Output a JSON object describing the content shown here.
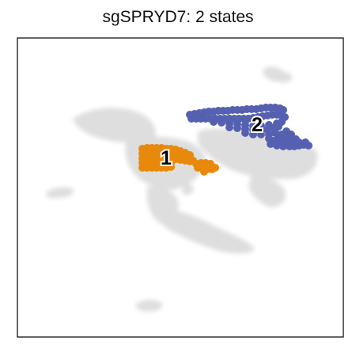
{
  "chart_data": {
    "type": "scatter",
    "title": "sgSPRYD7: 2 states",
    "xlabel": "",
    "ylabel": "",
    "ticks": false,
    "grid": false,
    "colors": {
      "background_cells": "#dedede",
      "state_1": "#e8890c",
      "state_2": "#5560b0",
      "frame": "#000000"
    },
    "series": [
      {
        "name": "1",
        "color": "#e8890c",
        "points": [
          [
            180,
            188
          ],
          [
            186,
            187
          ],
          [
            192,
            187
          ],
          [
            198,
            187
          ],
          [
            204,
            187
          ],
          [
            210,
            188
          ],
          [
            216,
            188
          ],
          [
            222,
            189
          ],
          [
            228,
            191
          ],
          [
            234,
            193
          ],
          [
            240,
            196
          ],
          [
            180,
            194
          ],
          [
            186,
            193
          ],
          [
            192,
            193
          ],
          [
            198,
            193
          ],
          [
            204,
            193
          ],
          [
            210,
            194
          ],
          [
            216,
            194
          ],
          [
            222,
            195
          ],
          [
            228,
            196
          ],
          [
            234,
            198
          ],
          [
            240,
            200
          ],
          [
            244,
            203
          ],
          [
            180,
            200
          ],
          [
            186,
            199
          ],
          [
            192,
            199
          ],
          [
            198,
            199
          ],
          [
            204,
            200
          ],
          [
            210,
            200
          ],
          [
            216,
            200
          ],
          [
            222,
            201
          ],
          [
            228,
            202
          ],
          [
            234,
            203
          ],
          [
            240,
            204
          ],
          [
            180,
            206
          ],
          [
            186,
            206
          ],
          [
            192,
            206
          ],
          [
            198,
            206
          ],
          [
            204,
            206
          ],
          [
            210,
            206
          ],
          [
            216,
            206
          ],
          [
            180,
            212
          ],
          [
            186,
            212
          ],
          [
            192,
            212
          ],
          [
            198,
            212
          ],
          [
            204,
            212
          ],
          [
            210,
            212
          ],
          [
            216,
            211
          ],
          [
            248,
            207
          ],
          [
            254,
            206
          ],
          [
            260,
            206
          ],
          [
            266,
            207
          ],
          [
            250,
            212
          ],
          [
            256,
            213
          ],
          [
            262,
            214
          ],
          [
            268,
            214
          ],
          [
            272,
            212
          ],
          [
            258,
            217
          ]
        ]
      },
      {
        "name": "2",
        "color": "#5560b0",
        "points": [
          [
            240,
            145
          ],
          [
            246,
            144
          ],
          [
            252,
            143
          ],
          [
            258,
            142
          ],
          [
            264,
            141
          ],
          [
            270,
            141
          ],
          [
            276,
            140
          ],
          [
            282,
            140
          ],
          [
            288,
            140
          ],
          [
            294,
            139
          ],
          [
            300,
            139
          ],
          [
            306,
            139
          ],
          [
            312,
            138
          ],
          [
            318,
            138
          ],
          [
            324,
            138
          ],
          [
            330,
            137
          ],
          [
            336,
            136
          ],
          [
            342,
            136
          ],
          [
            348,
            136
          ],
          [
            354,
            137
          ],
          [
            358,
            139
          ],
          [
            242,
            150
          ],
          [
            248,
            150
          ],
          [
            254,
            150
          ],
          [
            260,
            150
          ],
          [
            266,
            150
          ],
          [
            272,
            150
          ],
          [
            278,
            150
          ],
          [
            284,
            150
          ],
          [
            290,
            150
          ],
          [
            296,
            150
          ],
          [
            302,
            150
          ],
          [
            308,
            150
          ],
          [
            314,
            150
          ],
          [
            320,
            149
          ],
          [
            326,
            148
          ],
          [
            332,
            147
          ],
          [
            338,
            146
          ],
          [
            344,
            145
          ],
          [
            350,
            145
          ],
          [
            356,
            146
          ],
          [
            360,
            148
          ],
          [
            270,
            154
          ],
          [
            280,
            155
          ],
          [
            290,
            156
          ],
          [
            300,
            157
          ],
          [
            310,
            158
          ],
          [
            320,
            159
          ],
          [
            330,
            159
          ],
          [
            340,
            158
          ],
          [
            350,
            156
          ],
          [
            356,
            154
          ],
          [
            290,
            161
          ],
          [
            300,
            162
          ],
          [
            310,
            163
          ],
          [
            320,
            164
          ],
          [
            330,
            165
          ],
          [
            338,
            164
          ],
          [
            346,
            162
          ],
          [
            352,
            160
          ],
          [
            310,
            168
          ],
          [
            320,
            170
          ],
          [
            330,
            170
          ],
          [
            340,
            170
          ],
          [
            348,
            168
          ],
          [
            340,
            175
          ],
          [
            346,
            178
          ],
          [
            352,
            180
          ],
          [
            358,
            178
          ],
          [
            364,
            175
          ],
          [
            368,
            170
          ],
          [
            362,
            166
          ],
          [
            356,
            170
          ],
          [
            342,
            182
          ],
          [
            350,
            184
          ],
          [
            358,
            185
          ],
          [
            366,
            185
          ],
          [
            372,
            185
          ],
          [
            378,
            184
          ],
          [
            384,
            183
          ],
          [
            390,
            184
          ],
          [
            386,
            180
          ],
          [
            378,
            180
          ],
          [
            370,
            180
          ],
          [
            362,
            180
          ],
          [
            374,
            176
          ],
          [
            368,
            172
          ],
          [
            352,
            172
          ],
          [
            360,
            174
          ]
        ]
      }
    ],
    "annotations": [
      "1",
      "2"
    ]
  }
}
